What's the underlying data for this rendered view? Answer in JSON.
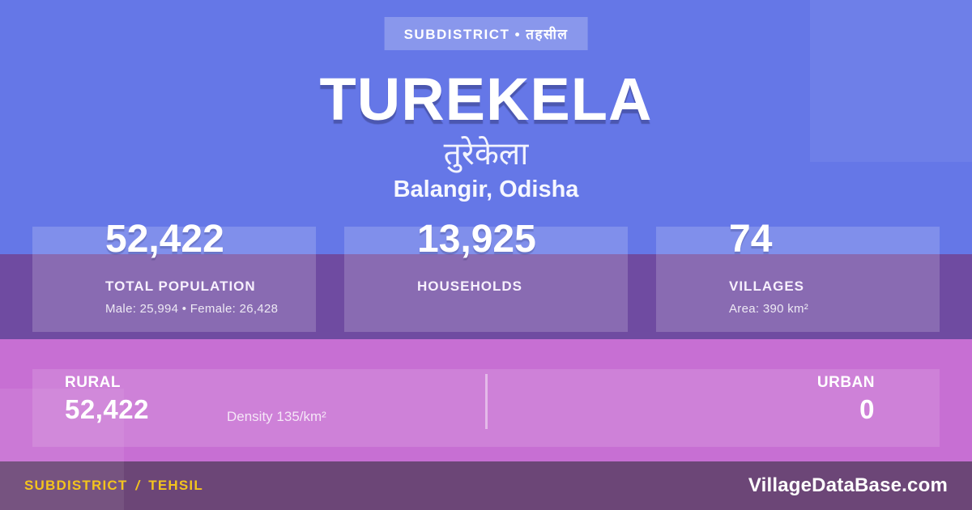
{
  "colors": {
    "background_blue": "#6577E7",
    "band_purple": "#6F4BA1",
    "band_pink": "#C76FD3",
    "footer_bar": "#6C4677",
    "accent_yellow": "#F3C41D"
  },
  "badge": {
    "label": "SUBDISTRICT • तहसील"
  },
  "header": {
    "title": "TUREKELA",
    "title_native": "तुरेकेला",
    "location": "Balangir, Odisha"
  },
  "stats": [
    {
      "value": "52,422",
      "label": "TOTAL POPULATION",
      "detail": "Male: 25,994 • Female: 26,428"
    },
    {
      "value": "13,925",
      "label": "HOUSEHOLDS",
      "detail": ""
    },
    {
      "value": "74",
      "label": "VILLAGES",
      "detail": "Area: 390 km²"
    }
  ],
  "distribution": {
    "rural": {
      "label": "RURAL",
      "value": "52,422"
    },
    "urban": {
      "label": "URBAN",
      "value": "0"
    },
    "density": "Density 135/km²"
  },
  "footer": {
    "category": "SUBDISTRICT",
    "separator": "/",
    "category_alt": "TEHSIL",
    "site": "VillageDataBase.com"
  }
}
